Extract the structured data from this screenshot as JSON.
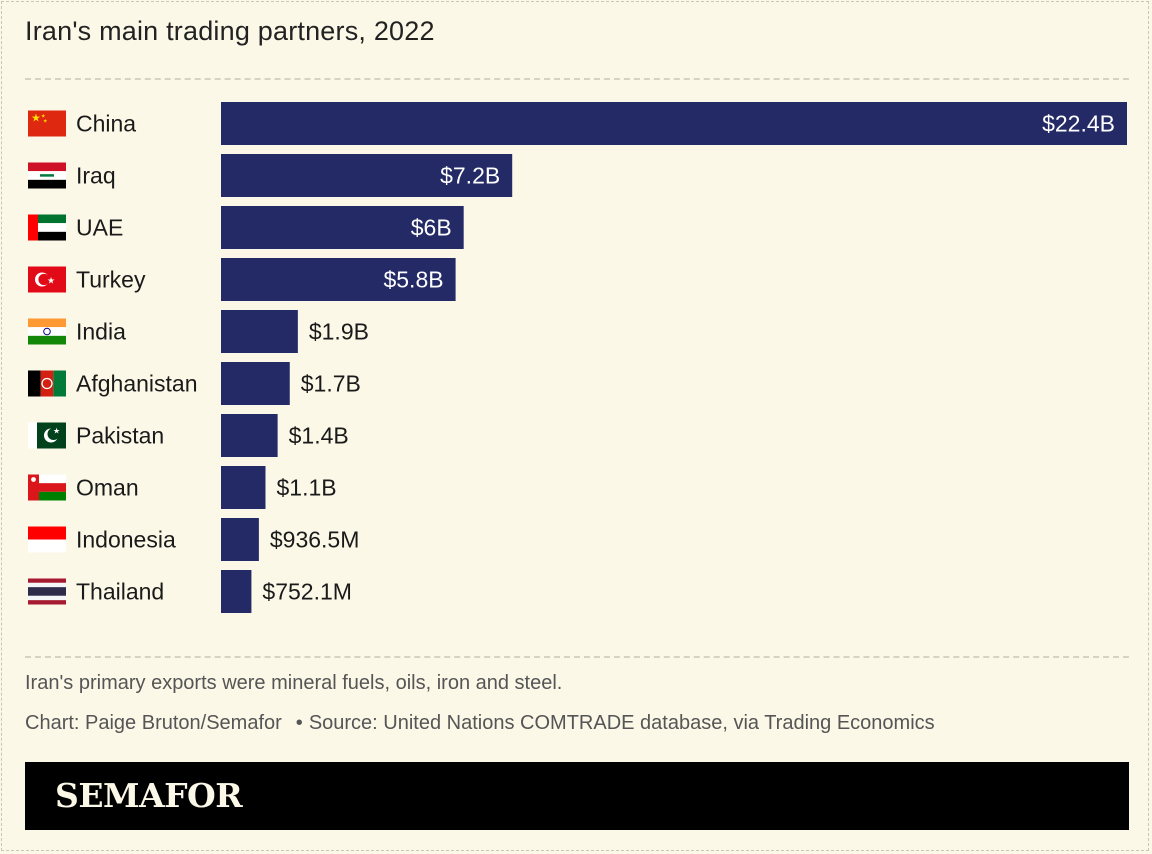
{
  "title": "Iran's main trading partners, 2022",
  "note": "Iran's primary exports were mineral fuels, oils, iron and steel.",
  "credit": {
    "chart": "Chart: Paige Bruton/Semafor",
    "bullet": "•",
    "source": "Source: United Nations COMTRADE database, via Trading Economics"
  },
  "brand": "SEMAFOR",
  "colors": {
    "background": "#fbf8e8",
    "bar": "#232a66",
    "footer": "#000000"
  },
  "chart_data": {
    "type": "bar",
    "orientation": "horizontal",
    "title": "Iran's main trading partners, 2022",
    "categories": [
      "China",
      "Iraq",
      "UAE",
      "Turkey",
      "India",
      "Afghanistan",
      "Pakistan",
      "Oman",
      "Indonesia",
      "Thailand"
    ],
    "flags": [
      "china-flag-icon",
      "iraq-flag-icon",
      "uae-flag-icon",
      "turkey-flag-icon",
      "india-flag-icon",
      "afghanistan-flag-icon",
      "pakistan-flag-icon",
      "oman-flag-icon",
      "indonesia-flag-icon",
      "thailand-flag-icon"
    ],
    "values": [
      22.4,
      7.2,
      6.0,
      5.8,
      1.9,
      1.7,
      1.4,
      1.1,
      0.9365,
      0.7521
    ],
    "unit": "billion USD",
    "labels": [
      "$22.4B",
      "$7.2B",
      "$6B",
      "$5.8B",
      "$1.9B",
      "$1.7B",
      "$1.4B",
      "$1.1B",
      "$936.5M",
      "$752.1M"
    ],
    "xlim": [
      0,
      22.4
    ],
    "xlabel": "",
    "ylabel": "",
    "grid": false
  }
}
